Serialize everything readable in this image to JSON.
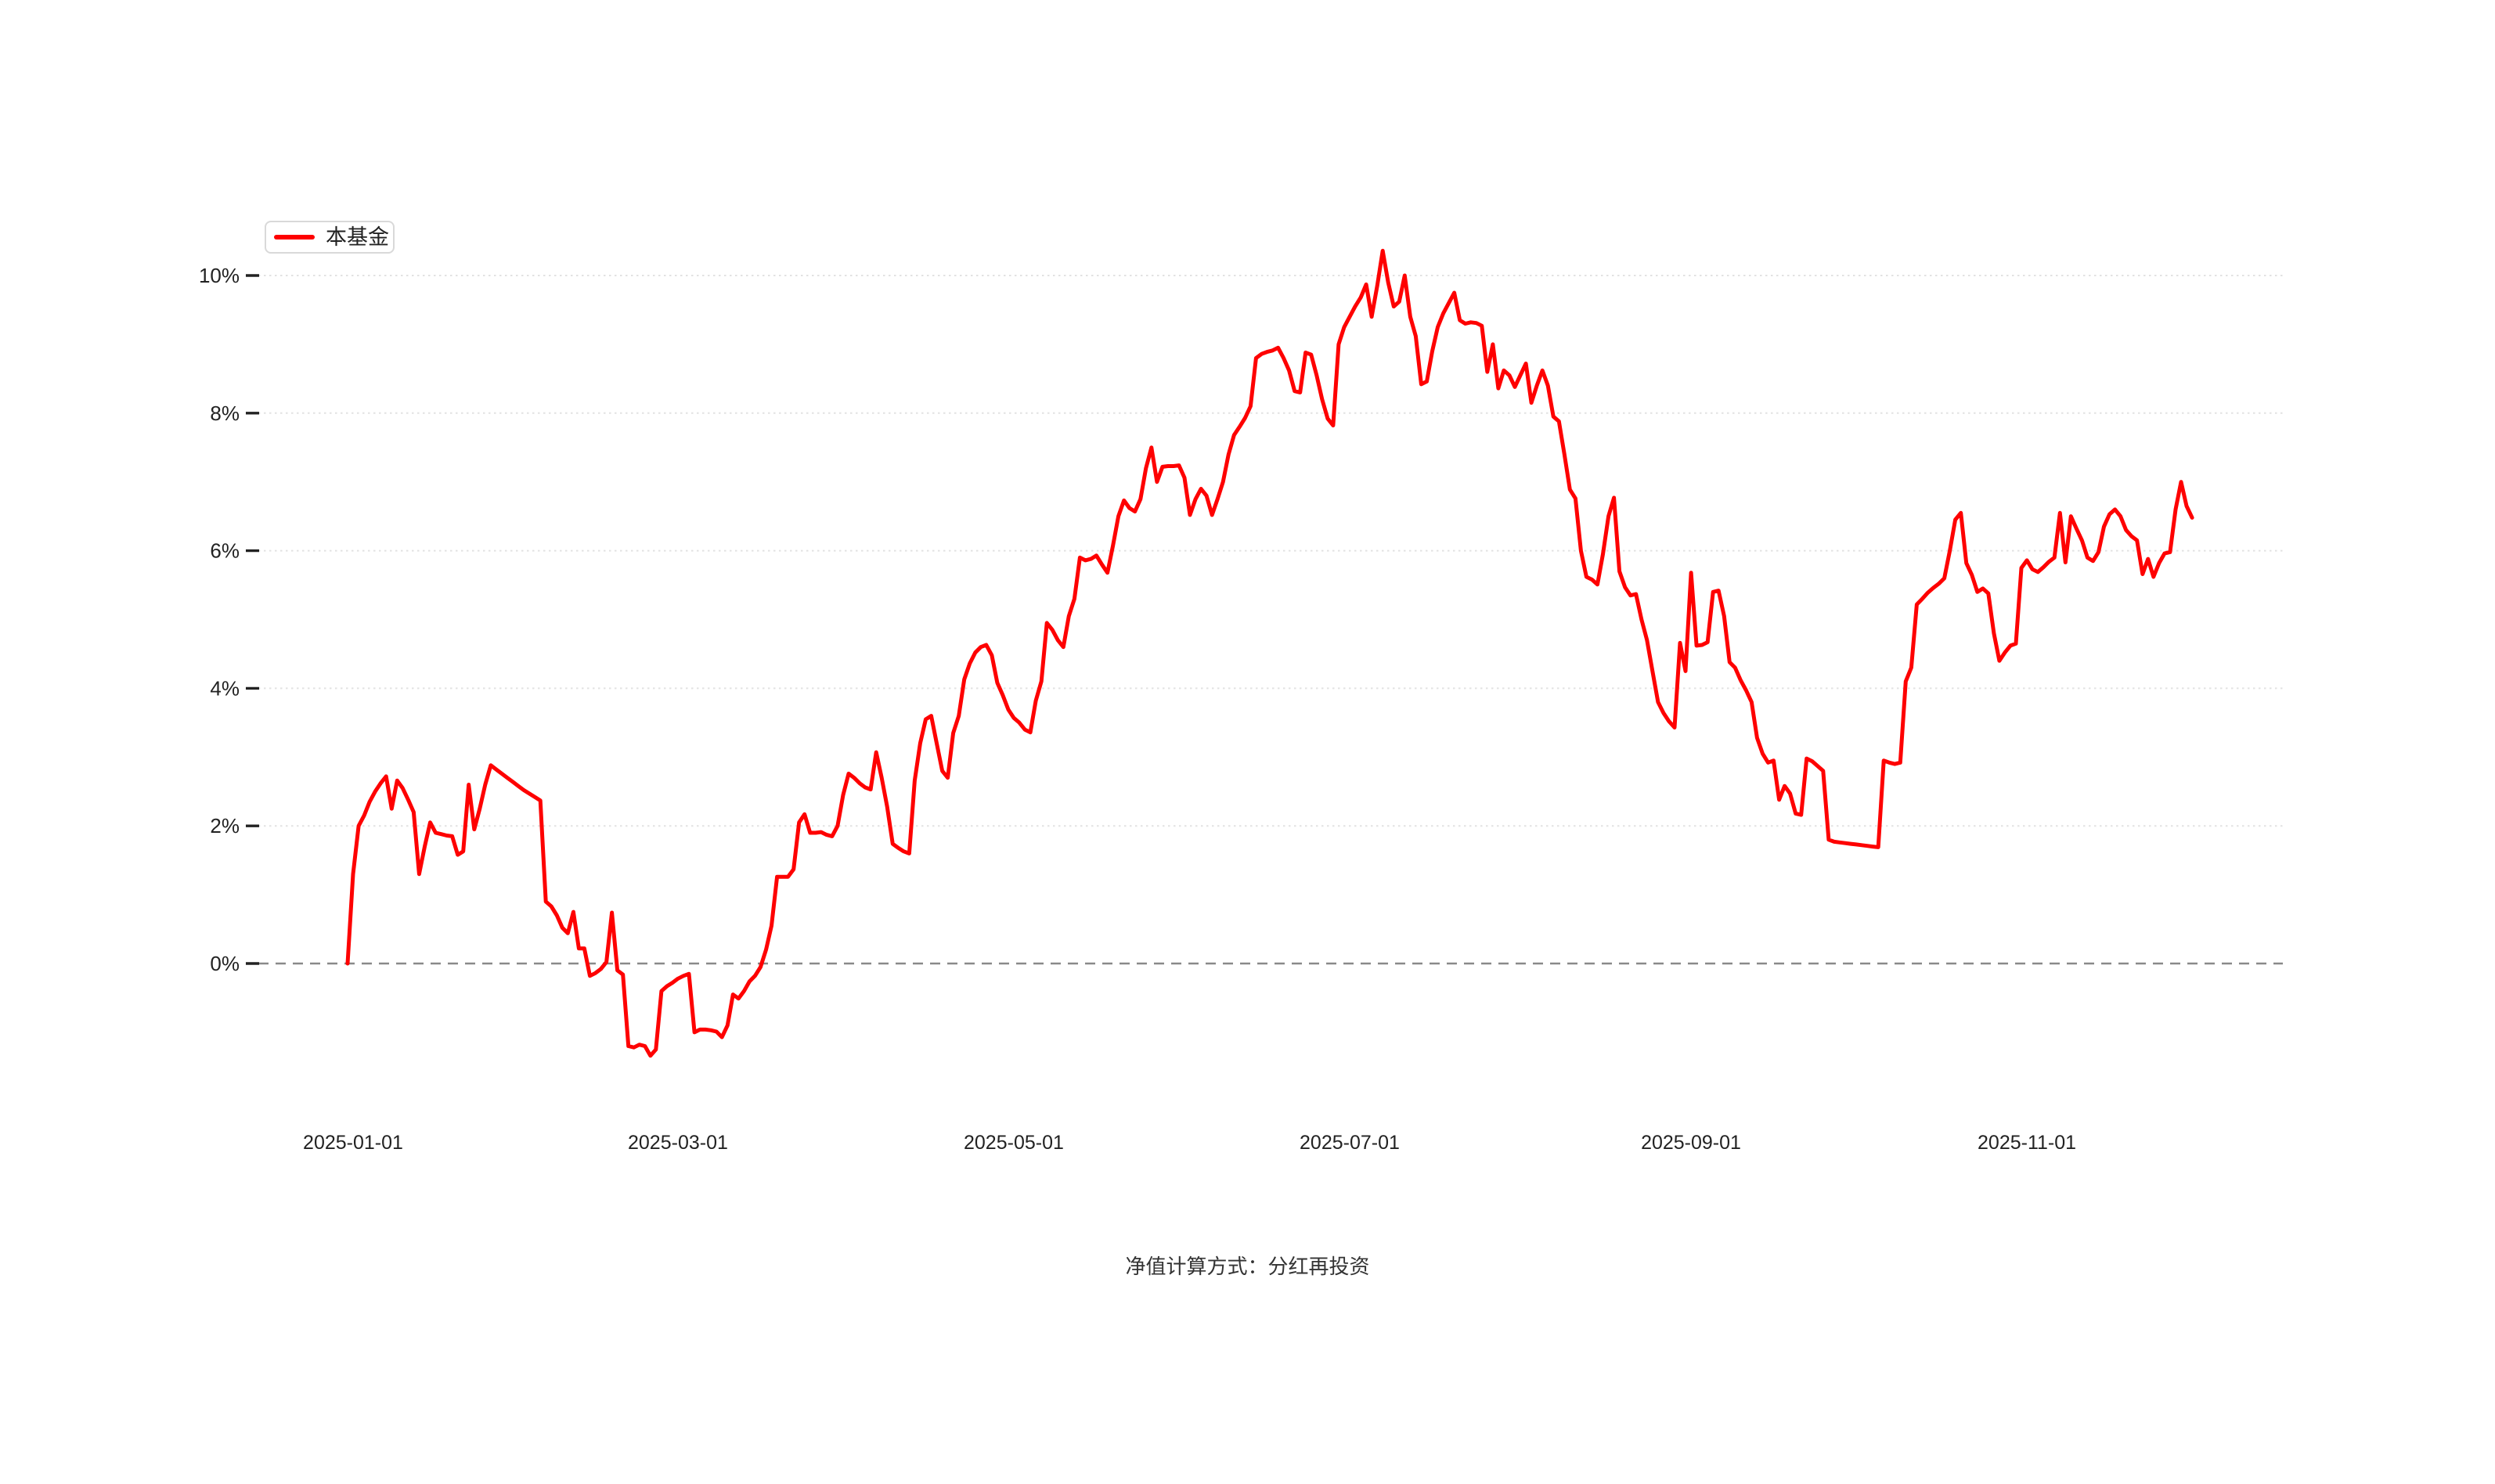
{
  "page": {
    "background": "#ffffff"
  },
  "legend": {
    "label": "本基金",
    "color": "#fe0000"
  },
  "footer": {
    "note": "净值计算方式：分红再投资"
  },
  "chart_data": {
    "type": "line",
    "title": "",
    "xlabel": "",
    "ylabel": "",
    "legend_position": "top-left",
    "grid": "horizontal dotted, dashed zero line",
    "ylim": [
      -1.6,
      10.8
    ],
    "y_ticks": [
      {
        "label": "0%",
        "value": 0
      },
      {
        "label": "2%",
        "value": 2
      },
      {
        "label": "4%",
        "value": 4
      },
      {
        "label": "6%",
        "value": 6
      },
      {
        "label": "8%",
        "value": 8
      },
      {
        "label": "10%",
        "value": 10
      }
    ],
    "x_ticks": [
      {
        "label": "2025-01-01",
        "day": 0
      },
      {
        "label": "2025-03-01",
        "day": 59
      },
      {
        "label": "2025-05-01",
        "day": 120
      },
      {
        "label": "2025-07-01",
        "day": 181
      },
      {
        "label": "2025-09-01",
        "day": 243
      },
      {
        "label": "2025-11-01",
        "day": 304
      }
    ],
    "series": [
      {
        "name": "本基金",
        "color": "#fe0000",
        "unit": "%",
        "start_date": "2025-01-01",
        "end_date": "2025-12-02",
        "frequency": "daily",
        "values": [
          0.0,
          1.3,
          2.0,
          2.15,
          2.35,
          2.5,
          2.62,
          2.72,
          2.25,
          2.66,
          2.55,
          2.38,
          2.2,
          1.3,
          1.7,
          2.05,
          1.9,
          1.88,
          1.86,
          1.85,
          1.58,
          1.63,
          2.6,
          1.95,
          2.25,
          2.6,
          2.88,
          2.82,
          2.76,
          2.7,
          2.64,
          2.58,
          2.52,
          2.47,
          2.42,
          2.37,
          0.9,
          0.83,
          0.7,
          0.52,
          0.44,
          0.75,
          0.22,
          0.22,
          -0.18,
          -0.14,
          -0.08,
          0.02,
          0.74,
          -0.1,
          -0.16,
          -1.2,
          -1.22,
          -1.18,
          -1.2,
          -1.34,
          -1.25,
          -0.4,
          -0.33,
          -0.28,
          -0.22,
          -0.18,
          -0.15,
          -1.0,
          -0.96,
          -0.96,
          -0.97,
          -0.99,
          -1.07,
          -0.9,
          -0.45,
          -0.51,
          -0.4,
          -0.26,
          -0.18,
          -0.05,
          0.2,
          0.55,
          1.26,
          1.26,
          1.26,
          1.37,
          2.05,
          2.17,
          1.9,
          1.9,
          1.91,
          1.87,
          1.85,
          2.0,
          2.45,
          2.76,
          2.7,
          2.62,
          2.56,
          2.53,
          3.07,
          2.7,
          2.28,
          1.74,
          1.68,
          1.63,
          1.6,
          2.66,
          3.2,
          3.55,
          3.6,
          3.2,
          2.8,
          2.7,
          3.35,
          3.6,
          4.13,
          4.36,
          4.52,
          4.6,
          4.63,
          4.48,
          4.08,
          3.9,
          3.69,
          3.57,
          3.5,
          3.4,
          3.36,
          3.82,
          4.1,
          4.95,
          4.85,
          4.7,
          4.6,
          5.05,
          5.3,
          5.9,
          5.86,
          5.88,
          5.93,
          5.8,
          5.68,
          6.07,
          6.5,
          6.73,
          6.62,
          6.57,
          6.75,
          7.2,
          7.5,
          7.0,
          7.22,
          7.23,
          7.23,
          7.24,
          7.06,
          6.52,
          6.75,
          6.9,
          6.8,
          6.52,
          6.75,
          7.0,
          7.4,
          7.68,
          7.8,
          7.93,
          8.1,
          8.8,
          8.86,
          8.89,
          8.91,
          8.95,
          8.8,
          8.62,
          8.32,
          8.3,
          8.88,
          8.85,
          8.55,
          8.2,
          7.92,
          7.82,
          9.0,
          9.25,
          9.4,
          9.55,
          9.68,
          9.87,
          9.4,
          9.85,
          10.36,
          9.9,
          9.55,
          9.62,
          10.0,
          9.4,
          9.12,
          8.42,
          8.46,
          8.9,
          9.25,
          9.45,
          9.6,
          9.75,
          9.35,
          9.3,
          9.32,
          9.31,
          9.27,
          8.6,
          9.0,
          8.36,
          8.62,
          8.55,
          8.38,
          8.55,
          8.72,
          8.15,
          8.4,
          8.62,
          8.4,
          7.95,
          7.88,
          7.4,
          6.89,
          6.76,
          6.0,
          5.62,
          5.58,
          5.51,
          5.95,
          6.5,
          6.77,
          5.7,
          5.47,
          5.35,
          5.37,
          5.0,
          4.7,
          4.25,
          3.8,
          3.64,
          3.52,
          3.43,
          4.66,
          4.25,
          5.68,
          4.62,
          4.63,
          4.67,
          5.4,
          5.42,
          5.05,
          4.38,
          4.3,
          4.12,
          3.97,
          3.8,
          3.28,
          3.05,
          2.92,
          2.95,
          2.38,
          2.58,
          2.47,
          2.18,
          2.16,
          2.98,
          2.94,
          2.87,
          2.8,
          1.8,
          1.77,
          1.76,
          1.75,
          1.74,
          1.73,
          1.72,
          1.71,
          1.7,
          1.69,
          2.95,
          2.92,
          2.9,
          2.92,
          4.1,
          4.3,
          5.22,
          5.3,
          5.39,
          5.46,
          5.52,
          5.6,
          6.0,
          6.45,
          6.55,
          5.82,
          5.65,
          5.4,
          5.45,
          5.38,
          4.8,
          4.4,
          4.52,
          4.62,
          4.65,
          5.75,
          5.86,
          5.73,
          5.69,
          5.76,
          5.84,
          5.9,
          6.55,
          5.83,
          6.5,
          6.32,
          6.15,
          5.9,
          5.85,
          5.98,
          6.35,
          6.53,
          6.6,
          6.5,
          6.3,
          6.21,
          6.15,
          5.66,
          5.88,
          5.62,
          5.82,
          5.96,
          5.98,
          6.6,
          7.0,
          6.65,
          6.48
        ]
      }
    ]
  }
}
